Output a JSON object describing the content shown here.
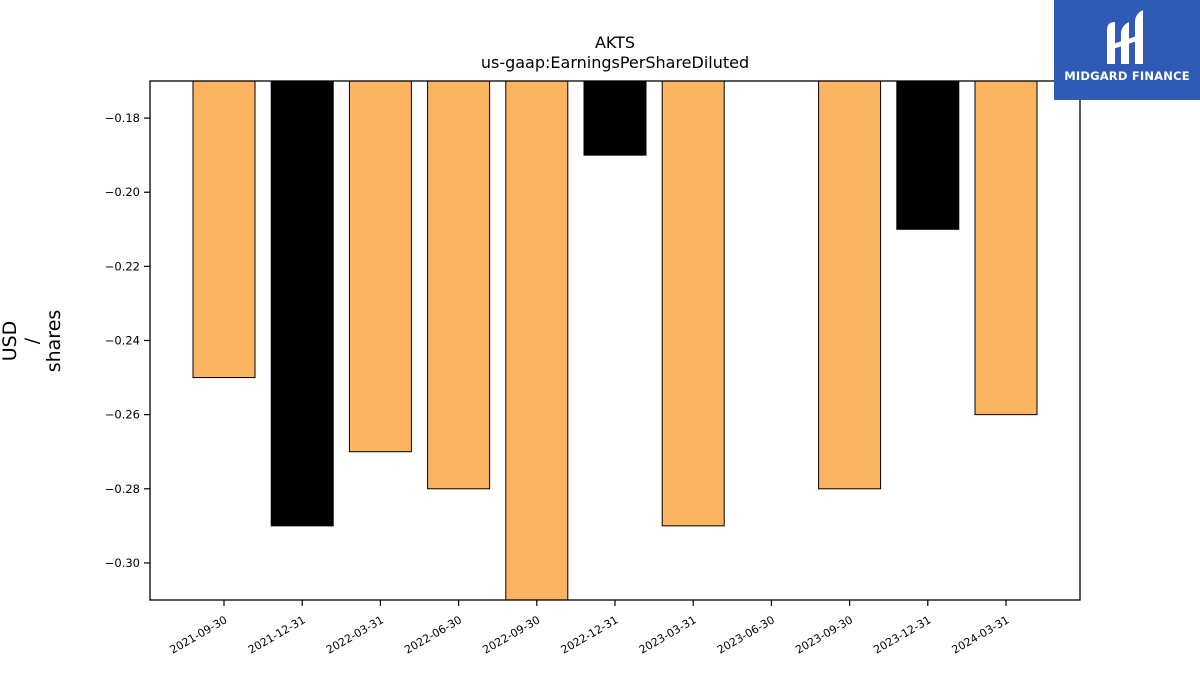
{
  "chart_data": {
    "type": "bar",
    "title": "AKTS",
    "subtitle": "us-gaap:EarningsPerShareDiluted",
    "ylabel": "USD\n/\nshares",
    "ylabel_lines": [
      "USD",
      "/",
      "shares"
    ],
    "xlabel": "",
    "categories": [
      "2021-09-30",
      "2021-12-31",
      "2022-03-31",
      "2022-06-30",
      "2022-09-30",
      "2022-12-31",
      "2023-03-31",
      "2023-06-30",
      "2023-09-30",
      "2023-12-31",
      "2024-03-31"
    ],
    "values": [
      -0.25,
      -0.29,
      -0.27,
      -0.28,
      -0.31,
      -0.19,
      -0.29,
      -0.17,
      -0.28,
      -0.21,
      -0.26
    ],
    "bar_colors": [
      "#fbb462",
      "#000000",
      "#fbb462",
      "#fbb462",
      "#fbb462",
      "#000000",
      "#fbb462",
      "#000000",
      "#fbb462",
      "#000000",
      "#fbb462"
    ],
    "ylim": [
      -0.31,
      -0.17
    ],
    "yticks": [
      -0.18,
      -0.2,
      -0.22,
      -0.24,
      -0.26,
      -0.28,
      -0.3
    ],
    "ytick_labels": [
      "−0.18",
      "−0.20",
      "−0.22",
      "−0.24",
      "−0.26",
      "−0.28",
      "−0.30"
    ],
    "grid": false,
    "legend": "none"
  },
  "logo": {
    "text": "MIDGARD FINANCE",
    "icon": "midgard-logo-icon",
    "background": "#2f5bb7"
  }
}
